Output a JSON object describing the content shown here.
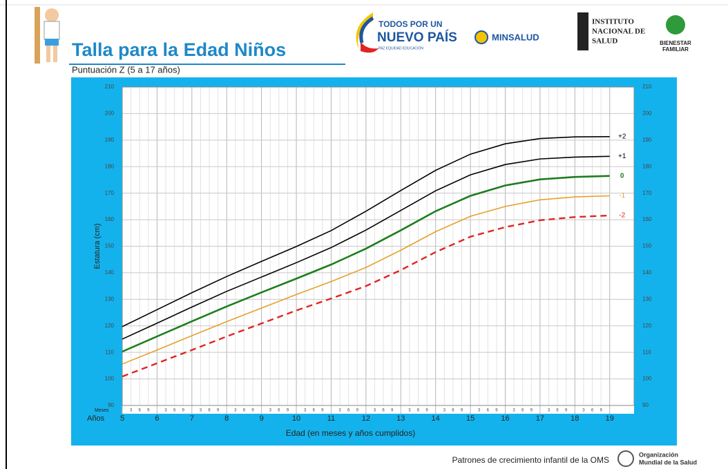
{
  "header": {
    "title": "Talla para la Edad Niños",
    "subtitle": "Puntuación Z (5 a 17 años)",
    "logo1_top": "TODOS POR UN",
    "logo1_main": "NUEVO PAÍS",
    "logo1_sub": "PAZ EQUIDAD EDUCACIÓN",
    "logo2": "MINSALUD",
    "logo3_line1": "INSTITUTO",
    "logo3_line2": "NACIONAL DE",
    "logo3_line3": "SALUD",
    "logo4_line1": "BIENESTAR",
    "logo4_line2": "FAMILIAR"
  },
  "footer": {
    "text": "Patrones de crecimiento infantil de la OMS",
    "who_line1": "Organización",
    "who_line2": "Mundial de la Salud"
  },
  "chart_data": {
    "type": "line",
    "xlabel": "Edad (en meses y años cumplidos)",
    "ylabel": "Estatura (cm)",
    "months_label": "Meses",
    "years_label": "Años",
    "month_labels": [
      "3",
      "6",
      "9"
    ],
    "x": [
      5,
      6,
      7,
      8,
      9,
      10,
      11,
      12,
      13,
      14,
      15,
      16,
      17,
      18,
      19
    ],
    "xlim": [
      5,
      19.7
    ],
    "xticks": [
      5,
      6,
      7,
      8,
      9,
      10,
      11,
      12,
      13,
      14,
      15,
      16,
      17,
      18,
      19
    ],
    "ylim": [
      90,
      210
    ],
    "yticks": [
      90,
      100,
      110,
      120,
      130,
      140,
      150,
      160,
      170,
      180,
      190,
      200,
      210
    ],
    "grid": true,
    "series": [
      {
        "name": "+2",
        "color": "#000000",
        "values": [
          119.7,
          126.1,
          132.5,
          138.6,
          144.3,
          149.9,
          155.9,
          163.2,
          171.0,
          178.6,
          184.7,
          188.6,
          190.6,
          191.2,
          191.3
        ]
      },
      {
        "name": "+1",
        "color": "#000000",
        "values": [
          115.0,
          121.0,
          127.1,
          133.0,
          138.4,
          143.8,
          149.5,
          156.1,
          163.5,
          170.9,
          176.9,
          180.8,
          182.9,
          183.6,
          183.9
        ]
      },
      {
        "name": "0",
        "color": "#1e7d1e",
        "values": [
          110.3,
          116.0,
          121.7,
          127.3,
          132.6,
          137.8,
          143.1,
          149.1,
          156.0,
          163.2,
          169.0,
          172.9,
          175.2,
          176.1,
          176.5
        ]
      },
      {
        "name": "-1",
        "color": "#e6a02a",
        "values": [
          105.6,
          110.9,
          116.3,
          121.6,
          126.7,
          131.8,
          136.7,
          142.0,
          148.5,
          155.5,
          161.3,
          165.0,
          167.5,
          168.6,
          169.0
        ]
      },
      {
        "name": "-2",
        "color": "#e02424",
        "dashed": true,
        "values": [
          100.9,
          105.9,
          110.9,
          116.0,
          120.9,
          125.8,
          130.3,
          135.0,
          141.0,
          147.8,
          153.6,
          157.2,
          159.8,
          161.0,
          161.6
        ]
      }
    ]
  }
}
